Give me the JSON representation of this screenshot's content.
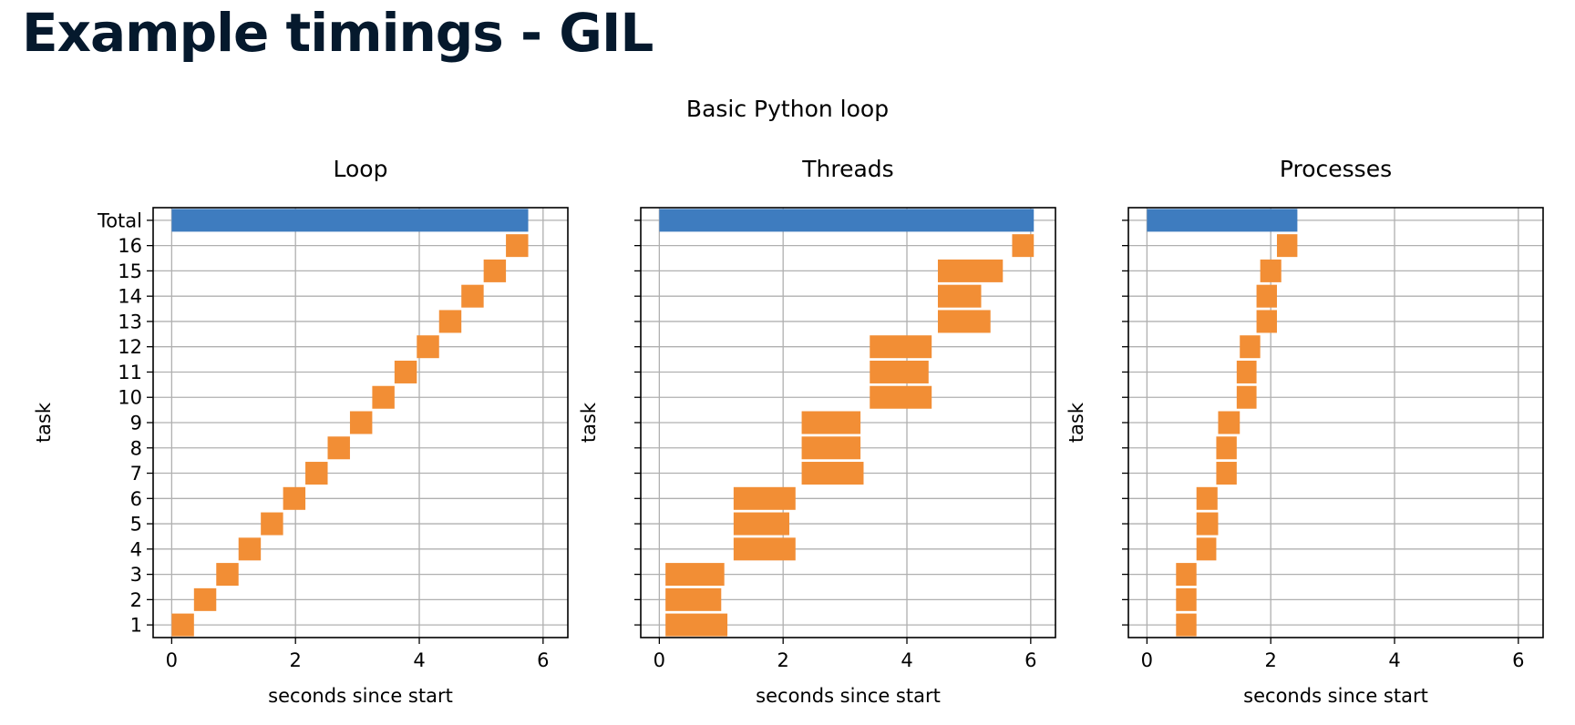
{
  "page": {
    "title": "Example timings - GIL"
  },
  "figure": {
    "suptitle": "Basic Python loop"
  },
  "colors": {
    "total": "#3e7cbf",
    "task": "#f28e35",
    "grid": "#b0b0b0",
    "axis": "#000000"
  },
  "chart_data": [
    {
      "type": "bar",
      "orientation": "horizontal",
      "title": "Loop",
      "xlabel": "seconds since start",
      "ylabel": "task",
      "xlim": [
        -0.3,
        6.4
      ],
      "xticks": [
        0,
        2,
        4,
        6
      ],
      "categories": [
        "1",
        "2",
        "3",
        "4",
        "5",
        "6",
        "7",
        "8",
        "9",
        "10",
        "11",
        "12",
        "13",
        "14",
        "15",
        "16",
        "Total"
      ],
      "bars": [
        {
          "label": "1",
          "start": 0.0,
          "end": 0.36
        },
        {
          "label": "2",
          "start": 0.36,
          "end": 0.72
        },
        {
          "label": "3",
          "start": 0.72,
          "end": 1.08
        },
        {
          "label": "4",
          "start": 1.08,
          "end": 1.44
        },
        {
          "label": "5",
          "start": 1.44,
          "end": 1.8
        },
        {
          "label": "6",
          "start": 1.8,
          "end": 2.16
        },
        {
          "label": "7",
          "start": 2.16,
          "end": 2.52
        },
        {
          "label": "8",
          "start": 2.52,
          "end": 2.88
        },
        {
          "label": "9",
          "start": 2.88,
          "end": 3.24
        },
        {
          "label": "10",
          "start": 3.24,
          "end": 3.6
        },
        {
          "label": "11",
          "start": 3.6,
          "end": 3.96
        },
        {
          "label": "12",
          "start": 3.96,
          "end": 4.32
        },
        {
          "label": "13",
          "start": 4.32,
          "end": 4.68
        },
        {
          "label": "14",
          "start": 4.68,
          "end": 5.04
        },
        {
          "label": "15",
          "start": 5.04,
          "end": 5.4
        },
        {
          "label": "16",
          "start": 5.4,
          "end": 5.76
        },
        {
          "label": "Total",
          "start": 0.0,
          "end": 5.76
        }
      ]
    },
    {
      "type": "bar",
      "orientation": "horizontal",
      "title": "Threads",
      "xlabel": "seconds since start",
      "ylabel": "task",
      "xlim": [
        -0.3,
        6.4
      ],
      "xticks": [
        0,
        2,
        4,
        6
      ],
      "categories": [
        "1",
        "2",
        "3",
        "4",
        "5",
        "6",
        "7",
        "8",
        "9",
        "10",
        "11",
        "12",
        "13",
        "14",
        "15",
        "16",
        "Total"
      ],
      "bars": [
        {
          "label": "1",
          "start": 0.1,
          "end": 1.1
        },
        {
          "label": "2",
          "start": 0.1,
          "end": 1.0
        },
        {
          "label": "3",
          "start": 0.1,
          "end": 1.05
        },
        {
          "label": "4",
          "start": 1.2,
          "end": 2.2
        },
        {
          "label": "5",
          "start": 1.2,
          "end": 2.1
        },
        {
          "label": "6",
          "start": 1.2,
          "end": 2.2
        },
        {
          "label": "7",
          "start": 2.3,
          "end": 3.3
        },
        {
          "label": "8",
          "start": 2.3,
          "end": 3.25
        },
        {
          "label": "9",
          "start": 2.3,
          "end": 3.25
        },
        {
          "label": "10",
          "start": 3.4,
          "end": 4.4
        },
        {
          "label": "11",
          "start": 3.4,
          "end": 4.35
        },
        {
          "label": "12",
          "start": 3.4,
          "end": 4.4
        },
        {
          "label": "13",
          "start": 4.5,
          "end": 5.35
        },
        {
          "label": "14",
          "start": 4.5,
          "end": 5.2
        },
        {
          "label": "15",
          "start": 4.5,
          "end": 5.55
        },
        {
          "label": "16",
          "start": 5.7,
          "end": 6.05
        },
        {
          "label": "Total",
          "start": 0.0,
          "end": 6.05
        }
      ]
    },
    {
      "type": "bar",
      "orientation": "horizontal",
      "title": "Processes",
      "xlabel": "seconds since start",
      "ylabel": "task",
      "xlim": [
        -0.3,
        6.4
      ],
      "xticks": [
        0,
        2,
        4,
        6
      ],
      "categories": [
        "1",
        "2",
        "3",
        "4",
        "5",
        "6",
        "7",
        "8",
        "9",
        "10",
        "11",
        "12",
        "13",
        "14",
        "15",
        "16",
        "Total"
      ],
      "bars": [
        {
          "label": "1",
          "start": 0.47,
          "end": 0.8
        },
        {
          "label": "2",
          "start": 0.47,
          "end": 0.8
        },
        {
          "label": "3",
          "start": 0.47,
          "end": 0.8
        },
        {
          "label": "4",
          "start": 0.8,
          "end": 1.12
        },
        {
          "label": "5",
          "start": 0.8,
          "end": 1.15
        },
        {
          "label": "6",
          "start": 0.8,
          "end": 1.14
        },
        {
          "label": "7",
          "start": 1.12,
          "end": 1.45
        },
        {
          "label": "8",
          "start": 1.12,
          "end": 1.45
        },
        {
          "label": "9",
          "start": 1.15,
          "end": 1.5
        },
        {
          "label": "10",
          "start": 1.45,
          "end": 1.77
        },
        {
          "label": "11",
          "start": 1.45,
          "end": 1.77
        },
        {
          "label": "12",
          "start": 1.5,
          "end": 1.83
        },
        {
          "label": "13",
          "start": 1.77,
          "end": 2.1
        },
        {
          "label": "14",
          "start": 1.77,
          "end": 2.1
        },
        {
          "label": "15",
          "start": 1.83,
          "end": 2.17
        },
        {
          "label": "16",
          "start": 2.1,
          "end": 2.43
        },
        {
          "label": "Total",
          "start": 0.0,
          "end": 2.43
        }
      ]
    }
  ]
}
